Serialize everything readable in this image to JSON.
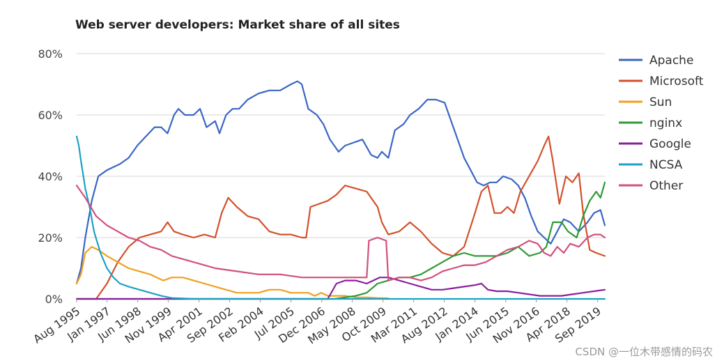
{
  "watermark": "CSDN @一位木带感情的码农",
  "chart_data": {
    "type": "line",
    "title": "Web server developers: Market share of all sites",
    "xlabel": "",
    "ylabel": "",
    "ylim": [
      0,
      80
    ],
    "x_range": [
      1995.6,
      2020.0
    ],
    "y_ticks": [
      0,
      20,
      40,
      60,
      80
    ],
    "y_tick_labels": [
      "0%",
      "20%",
      "40%",
      "60%",
      "80%"
    ],
    "grid": true,
    "legend_position": "right",
    "x_ticks": [
      {
        "label": "Aug 1995",
        "x": 1995.6
      },
      {
        "label": "Jan 1997",
        "x": 1997.0
      },
      {
        "label": "Jun 1998",
        "x": 1998.42
      },
      {
        "label": "Nov 1999",
        "x": 1999.83
      },
      {
        "label": "Apr 2001",
        "x": 2001.25
      },
      {
        "label": "Sep 2002",
        "x": 2002.67
      },
      {
        "label": "Feb 2004",
        "x": 2004.08
      },
      {
        "label": "Jul 2005",
        "x": 2005.5
      },
      {
        "label": "Dec 2006",
        "x": 2006.92
      },
      {
        "label": "May 2008",
        "x": 2008.33
      },
      {
        "label": "Oct 2009",
        "x": 2009.75
      },
      {
        "label": "Mar 2011",
        "x": 2011.17
      },
      {
        "label": "Aug 2012",
        "x": 2012.58
      },
      {
        "label": "Jan 2014",
        "x": 2014.0
      },
      {
        "label": "Jun 2015",
        "x": 2015.42
      },
      {
        "label": "Nov 2016",
        "x": 2016.83
      },
      {
        "label": "Apr 2018",
        "x": 2018.25
      },
      {
        "label": "Sep 2019",
        "x": 2019.67
      }
    ],
    "series": [
      {
        "name": "Apache",
        "color": "#3a66c4",
        "x": [
          1995.6,
          1995.8,
          1996.0,
          1996.3,
          1996.6,
          1997.0,
          1997.3,
          1997.6,
          1998.0,
          1998.4,
          1998.8,
          1999.2,
          1999.5,
          1999.8,
          2000.1,
          2000.3,
          2000.6,
          2001.0,
          2001.3,
          2001.6,
          2002.0,
          2002.2,
          2002.5,
          2002.8,
          2003.1,
          2003.5,
          2004.0,
          2004.5,
          2005.0,
          2005.5,
          2005.8,
          2006.0,
          2006.3,
          2006.7,
          2007.0,
          2007.3,
          2007.7,
          2008.0,
          2008.4,
          2008.8,
          2009.2,
          2009.5,
          2009.7,
          2010.0,
          2010.3,
          2010.7,
          2011.0,
          2011.4,
          2011.8,
          2012.2,
          2012.6,
          2012.9,
          2013.2,
          2013.5,
          2013.8,
          2014.1,
          2014.4,
          2014.7,
          2015.0,
          2015.3,
          2015.7,
          2016.0,
          2016.3,
          2016.6,
          2016.9,
          2017.2,
          2017.5,
          2017.8,
          2018.1,
          2018.4,
          2018.8,
          2019.2,
          2019.5,
          2019.8,
          2020.0
        ],
        "values": [
          5,
          10,
          20,
          32,
          40,
          42,
          43,
          44,
          46,
          50,
          53,
          56,
          56,
          54,
          60,
          62,
          60,
          60,
          62,
          56,
          58,
          54,
          60,
          62,
          62,
          65,
          67,
          68,
          68,
          70,
          71,
          70,
          62,
          60,
          57,
          52,
          48,
          50,
          51,
          52,
          47,
          46,
          48,
          46,
          55,
          57,
          60,
          62,
          65,
          65,
          64,
          58,
          52,
          46,
          42,
          38,
          37,
          38,
          38,
          40,
          39,
          37,
          33,
          27,
          22,
          20,
          18,
          22,
          26,
          25,
          22,
          25,
          28,
          29,
          24
        ]
      },
      {
        "name": "Microsoft",
        "color": "#d2502b",
        "x": [
          1995.6,
          1996.0,
          1996.5,
          1997.0,
          1997.5,
          1998.0,
          1998.5,
          1999.0,
          1999.5,
          1999.8,
          2000.1,
          2000.5,
          2001.0,
          2001.5,
          2002.0,
          2002.3,
          2002.6,
          2003.0,
          2003.5,
          2004.0,
          2004.5,
          2005.0,
          2005.5,
          2006.0,
          2006.2,
          2006.4,
          2006.8,
          2007.2,
          2007.6,
          2008.0,
          2008.5,
          2009.0,
          2009.5,
          2009.7,
          2010.0,
          2010.5,
          2011.0,
          2011.5,
          2012.0,
          2012.5,
          2013.0,
          2013.5,
          2014.0,
          2014.3,
          2014.6,
          2014.9,
          2015.2,
          2015.5,
          2015.8,
          2016.1,
          2016.5,
          2016.9,
          2017.2,
          2017.4,
          2017.6,
          2017.9,
          2018.2,
          2018.5,
          2018.8,
          2019.0,
          2019.3,
          2019.6,
          2020.0
        ],
        "values": [
          0,
          0,
          0,
          5,
          12,
          17,
          20,
          21,
          22,
          25,
          22,
          21,
          20,
          21,
          20,
          28,
          33,
          30,
          27,
          26,
          22,
          21,
          21,
          20,
          20,
          30,
          31,
          32,
          34,
          37,
          36,
          35,
          30,
          25,
          21,
          22,
          25,
          22,
          18,
          15,
          14,
          17,
          28,
          35,
          37,
          28,
          28,
          30,
          28,
          35,
          40,
          45,
          50,
          53,
          45,
          31,
          40,
          38,
          41,
          28,
          16,
          15,
          14
        ]
      },
      {
        "name": "Sun",
        "color": "#f0a01e",
        "x": [
          1995.6,
          1995.8,
          1996.0,
          1996.3,
          1996.6,
          1997.0,
          1997.5,
          1998.0,
          1998.5,
          1999.0,
          1999.3,
          1999.6,
          2000.0,
          2000.5,
          2001.0,
          2001.5,
          2002.0,
          2002.5,
          2003.0,
          2003.5,
          2004.0,
          2004.5,
          2005.0,
          2005.5,
          2006.0,
          2006.3,
          2006.6,
          2006.9,
          2007.2,
          2007.6,
          2008.0,
          2008.5,
          2009.0,
          2009.5,
          2010.0
        ],
        "values": [
          5,
          8,
          15,
          17,
          16,
          14,
          12,
          10,
          9,
          8,
          7,
          6,
          7,
          7,
          6,
          5,
          4,
          3,
          2,
          2,
          2,
          3,
          3,
          2,
          2,
          2,
          1,
          2,
          1,
          1,
          1,
          0.5,
          0.5,
          0.3,
          0.2
        ]
      },
      {
        "name": "nginx",
        "color": "#2e9a35",
        "x": [
          1995.6,
          2007.5,
          2008.0,
          2008.5,
          2009.0,
          2009.5,
          2010.0,
          2010.5,
          2011.0,
          2011.5,
          2012.0,
          2012.5,
          2013.0,
          2013.5,
          2014.0,
          2014.5,
          2015.0,
          2015.5,
          2016.0,
          2016.5,
          2017.0,
          2017.3,
          2017.6,
          2018.0,
          2018.3,
          2018.7,
          2019.0,
          2019.3,
          2019.6,
          2019.8,
          2020.0
        ],
        "values": [
          0,
          0,
          0.5,
          1,
          2,
          5,
          6,
          7,
          7,
          8,
          10,
          12,
          14,
          15,
          14,
          14,
          14,
          15,
          17,
          14,
          15,
          17,
          25,
          25,
          22,
          20,
          27,
          32,
          35,
          33,
          38
        ]
      },
      {
        "name": "Google",
        "color": "#8b1e9e",
        "x": [
          1995.6,
          2006.8,
          2007.2,
          2007.6,
          2008.0,
          2008.5,
          2009.0,
          2009.3,
          2009.6,
          2010.0,
          2010.5,
          2011.0,
          2011.5,
          2012.0,
          2012.5,
          2013.0,
          2013.5,
          2014.0,
          2014.3,
          2014.6,
          2015.0,
          2015.5,
          2016.0,
          2016.5,
          2017.0,
          2017.5,
          2018.0,
          2018.5,
          2019.0,
          2019.5,
          2020.0
        ],
        "values": [
          0,
          0,
          0,
          5,
          6,
          6,
          5,
          6,
          7,
          7,
          6,
          5,
          4,
          3,
          3,
          3.5,
          4,
          4.5,
          5,
          3,
          2.5,
          2.5,
          2,
          1.5,
          1,
          1,
          1,
          1.5,
          2,
          2.5,
          3
        ]
      },
      {
        "name": "NCSA",
        "color": "#1aa2c4",
        "x": [
          1995.6,
          1995.7,
          1995.8,
          1996.0,
          1996.2,
          1996.4,
          1996.7,
          1997.0,
          1997.3,
          1997.6,
          1998.0,
          1998.5,
          1999.0,
          1999.5,
          2000.0,
          2001.0,
          2020.0
        ],
        "values": [
          53,
          50,
          45,
          36,
          30,
          22,
          15,
          10,
          7,
          5,
          4,
          3,
          2,
          1,
          0.3,
          0,
          0
        ]
      },
      {
        "name": "Other",
        "color": "#d14f7d",
        "x": [
          1995.6,
          1996.0,
          1996.5,
          1997.0,
          1997.5,
          1998.0,
          1998.5,
          1999.0,
          1999.5,
          2000.0,
          2000.5,
          2001.0,
          2001.5,
          2002.0,
          2003.0,
          2004.0,
          2005.0,
          2006.0,
          2007.0,
          2008.0,
          2009.0,
          2009.1,
          2009.5,
          2009.9,
          2010.0,
          2010.5,
          2011.0,
          2011.5,
          2012.0,
          2012.5,
          2013.0,
          2013.5,
          2014.0,
          2014.5,
          2015.0,
          2015.5,
          2016.0,
          2016.5,
          2016.9,
          2017.2,
          2017.5,
          2017.8,
          2018.1,
          2018.4,
          2018.8,
          2019.2,
          2019.5,
          2019.8,
          2020.0
        ],
        "values": [
          37,
          33,
          27,
          24,
          22,
          20,
          19,
          17,
          16,
          14,
          13,
          12,
          11,
          10,
          9,
          8,
          8,
          7,
          7,
          7,
          7,
          19,
          20,
          19,
          6,
          7,
          7,
          6,
          7,
          9,
          10,
          11,
          11,
          12,
          14,
          16,
          17,
          19,
          18,
          15,
          14,
          17,
          15,
          18,
          17,
          20,
          21,
          21,
          20
        ]
      }
    ]
  }
}
